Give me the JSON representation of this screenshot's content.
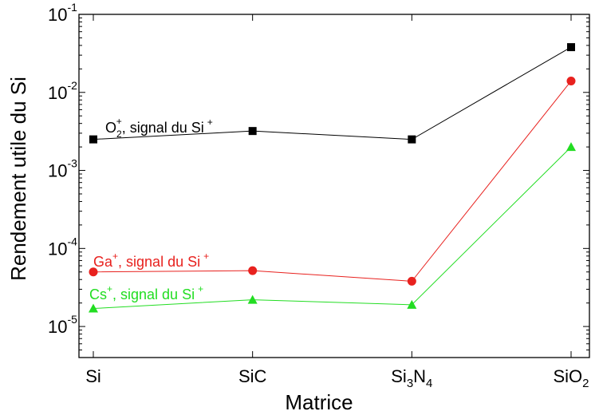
{
  "chart_data": {
    "type": "line",
    "xlabel": "Matrice",
    "ylabel": "Rendement utile du Si",
    "y_scale": "log",
    "ylim": [
      4e-06,
      0.1
    ],
    "grid": false,
    "categories": [
      "Si",
      "SiC",
      "Si3N4",
      "SiO2"
    ],
    "category_labels": [
      {
        "base": "Si",
        "sub1": "",
        "rest": "",
        "sub2": ""
      },
      {
        "base": "SiC",
        "sub1": "",
        "rest": "",
        "sub2": ""
      },
      {
        "base": "Si",
        "sub1": "3",
        "rest": "N",
        "sub2": "4"
      },
      {
        "base": "SiO",
        "sub1": "2",
        "rest": "",
        "sub2": ""
      }
    ],
    "y_ticks": [
      {
        "value": 1e-05,
        "label": "10",
        "exp": "-5"
      },
      {
        "value": 0.0001,
        "label": "10",
        "exp": "-4"
      },
      {
        "value": 0.001,
        "label": "10",
        "exp": "-3"
      },
      {
        "value": 0.01,
        "label": "10",
        "exp": "-2"
      },
      {
        "value": 0.1,
        "label": "10",
        "exp": "-1"
      }
    ],
    "series": [
      {
        "name": "O2+, signal du Si+",
        "color": "#000000",
        "marker": "square",
        "values": [
          0.0025,
          0.0032,
          0.0025,
          0.038
        ],
        "label": {
          "ion": "O",
          "ion_sub": "2",
          "ion_sup": "+",
          "signal": ", signal du Si",
          "signal_sup": "+"
        }
      },
      {
        "name": "Ga+, signal du Si+",
        "color": "#e8211e",
        "marker": "circle",
        "values": [
          5e-05,
          5.2e-05,
          3.8e-05,
          0.014
        ],
        "label": {
          "ion": "Ga",
          "ion_sub": "",
          "ion_sup": "+",
          "signal": ", signal du Si",
          "signal_sup": "+"
        }
      },
      {
        "name": "Cs+, signal du Si+",
        "color": "#22dd22",
        "marker": "triangle",
        "values": [
          1.7e-05,
          2.2e-05,
          1.9e-05,
          0.002
        ],
        "label": {
          "ion": "Cs",
          "ion_sub": "",
          "ion_sup": "+",
          "signal": ", signal du Si",
          "signal_sup": "+"
        }
      }
    ]
  }
}
